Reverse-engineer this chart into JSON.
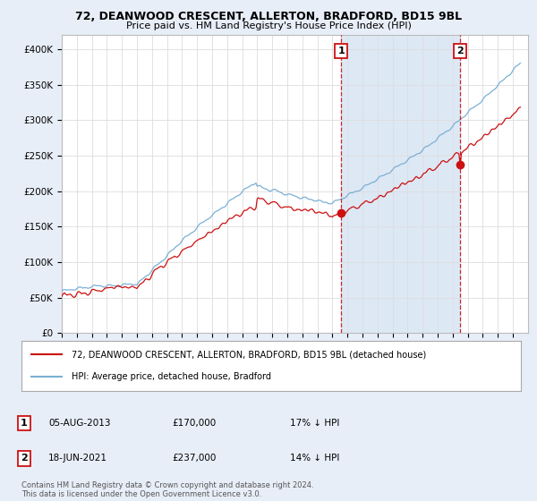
{
  "title": "72, DEANWOOD CRESCENT, ALLERTON, BRADFORD, BD15 9BL",
  "subtitle": "Price paid vs. HM Land Registry's House Price Index (HPI)",
  "background_color": "#e8eef8",
  "plot_bg_color": "#ffffff",
  "shade_color": "#dde8f5",
  "red_line_color": "#cc1111",
  "blue_line_color": "#7ab0d4",
  "dashed_red_color": "#cc1111",
  "ylim": [
    0,
    420000
  ],
  "yticks": [
    0,
    50000,
    100000,
    150000,
    200000,
    250000,
    300000,
    350000,
    400000
  ],
  "ytick_labels": [
    "£0",
    "£50K",
    "£100K",
    "£150K",
    "£200K",
    "£250K",
    "£300K",
    "£350K",
    "£400K"
  ],
  "xmin": 1995.0,
  "xmax": 2026.0,
  "sale1_x": 2013.59,
  "sale1_y": 170000,
  "sale1_label": "1",
  "sale1_date": "05-AUG-2013",
  "sale1_price": "£170,000",
  "sale1_hpi": "17% ↓ HPI",
  "sale2_x": 2021.46,
  "sale2_y": 237000,
  "sale2_label": "2",
  "sale2_date": "18-JUN-2021",
  "sale2_price": "£237,000",
  "sale2_hpi": "14% ↓ HPI",
  "legend_line1": "72, DEANWOOD CRESCENT, ALLERTON, BRADFORD, BD15 9BL (detached house)",
  "legend_line2": "HPI: Average price, detached house, Bradford",
  "footer": "Contains HM Land Registry data © Crown copyright and database right 2024.\nThis data is licensed under the Open Government Licence v3.0."
}
